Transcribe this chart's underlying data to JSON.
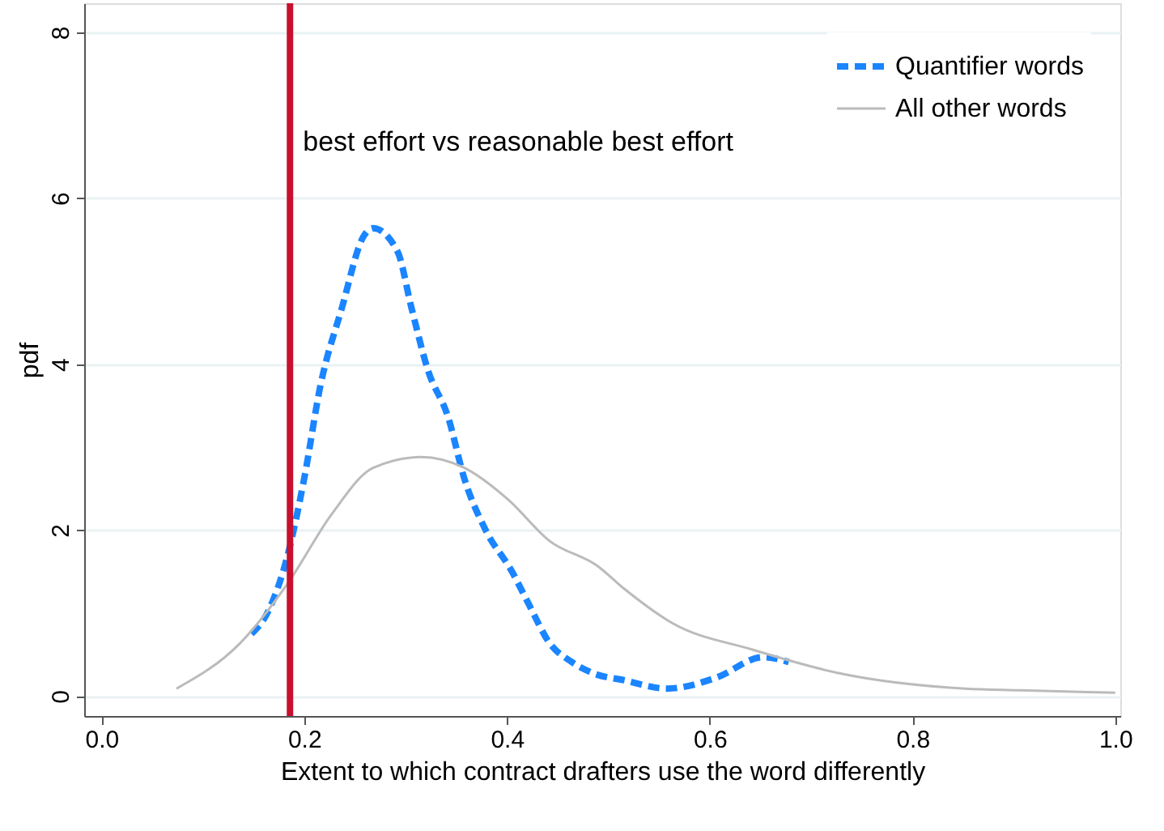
{
  "chart_data": {
    "type": "line",
    "xlabel": "Extent to which contract drafters use the word differently",
    "ylabel": "pdf",
    "xlim": [
      -0.017,
      1.005
    ],
    "xticks": [
      {
        "value": 0,
        "label": "0.0"
      },
      0.2,
      0.4,
      0.6,
      0.8,
      {
        "value": 1,
        "label": "1.0"
      }
    ],
    "ylim": [
      -0.24,
      8.35
    ],
    "yticks": [
      0,
      2,
      4,
      6,
      8
    ],
    "grid": "y",
    "legend": "top right",
    "series": [
      {
        "name": "Quantifier words",
        "color": "#1a85ff",
        "line_style": "dashed",
        "x": [
          0.148,
          0.164,
          0.185,
          0.2,
          0.216,
          0.237,
          0.259,
          0.268,
          0.292,
          0.306,
          0.322,
          0.342,
          0.358,
          0.379,
          0.405,
          0.421,
          0.442,
          0.464,
          0.484,
          0.516,
          0.558,
          0.606,
          0.653,
          0.678
        ],
        "values": [
          0.75,
          1.01,
          1.76,
          2.62,
          3.74,
          4.67,
          5.55,
          5.64,
          5.36,
          4.67,
          3.93,
          3.36,
          2.62,
          2.0,
          1.5,
          1.12,
          0.64,
          0.41,
          0.28,
          0.19,
          0.09,
          0.22,
          0.47,
          0.41
        ]
      },
      {
        "name": "All other words",
        "color": "#bbbbbb",
        "line_style": "solid",
        "x": [
          0.074,
          0.137,
          0.185,
          0.227,
          0.268,
          0.315,
          0.358,
          0.401,
          0.442,
          0.489,
          0.516,
          0.563,
          0.642,
          0.726,
          0.852,
          0.905,
          1.0
        ],
        "values": [
          0.09,
          0.64,
          1.38,
          2.19,
          2.75,
          2.88,
          2.75,
          2.37,
          1.87,
          1.57,
          1.29,
          0.88,
          0.56,
          0.28,
          0.09,
          0.07,
          0.04
        ]
      }
    ],
    "ref_lines": [
      {
        "axis": "x",
        "value": 0.186,
        "label": "best effort vs reasonable best effort",
        "color": "#c8102e"
      }
    ]
  }
}
